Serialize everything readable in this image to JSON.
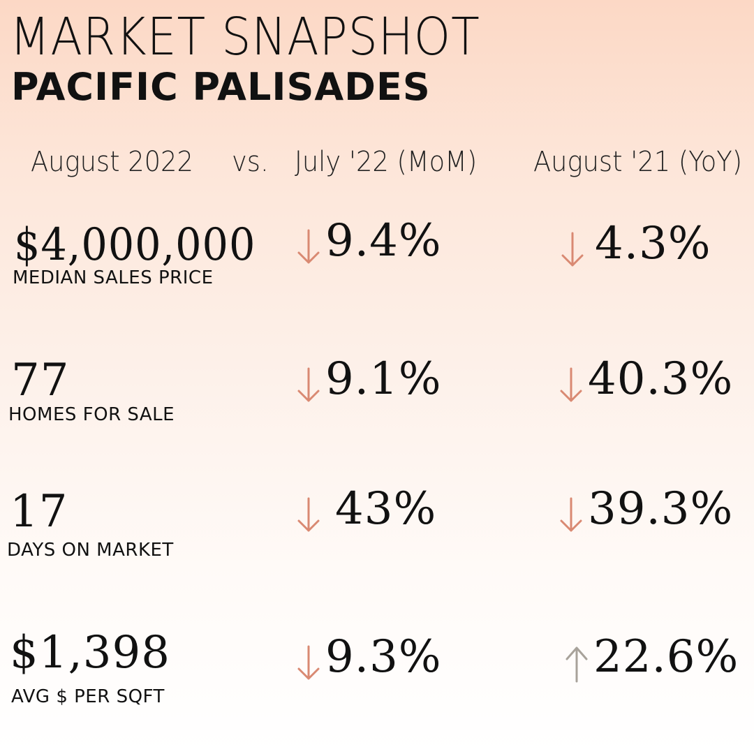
{
  "header": {
    "title": "MARKET SNAPSHOT",
    "subtitle": "PACIFIC PALISADES"
  },
  "columns": {
    "current": "August 2022",
    "vs": "vs.",
    "mom": "July '22 (MoM)",
    "yoy": "August '21 (YoY)"
  },
  "colors": {
    "down_arrow": "#d98972",
    "up_arrow": "#a8a29a"
  },
  "metrics": [
    {
      "value": "$4,000,000",
      "label": "MEDIAN SALES PRICE",
      "mom": {
        "direction": "down",
        "text": "9.4%"
      },
      "yoy": {
        "direction": "down",
        "text": "4.3%"
      }
    },
    {
      "value": "77",
      "label": "HOMES FOR SALE",
      "mom": {
        "direction": "down",
        "text": "9.1%"
      },
      "yoy": {
        "direction": "down",
        "text": "40.3%"
      }
    },
    {
      "value": "17",
      "label": "DAYS ON MARKET",
      "mom": {
        "direction": "down",
        "text": "43%"
      },
      "yoy": {
        "direction": "down",
        "text": "39.3%"
      }
    },
    {
      "value": "$1,398",
      "label": "AVG $ PER SQFT",
      "mom": {
        "direction": "down",
        "text": "9.3%"
      },
      "yoy": {
        "direction": "up",
        "text": "22.6%"
      }
    }
  ]
}
